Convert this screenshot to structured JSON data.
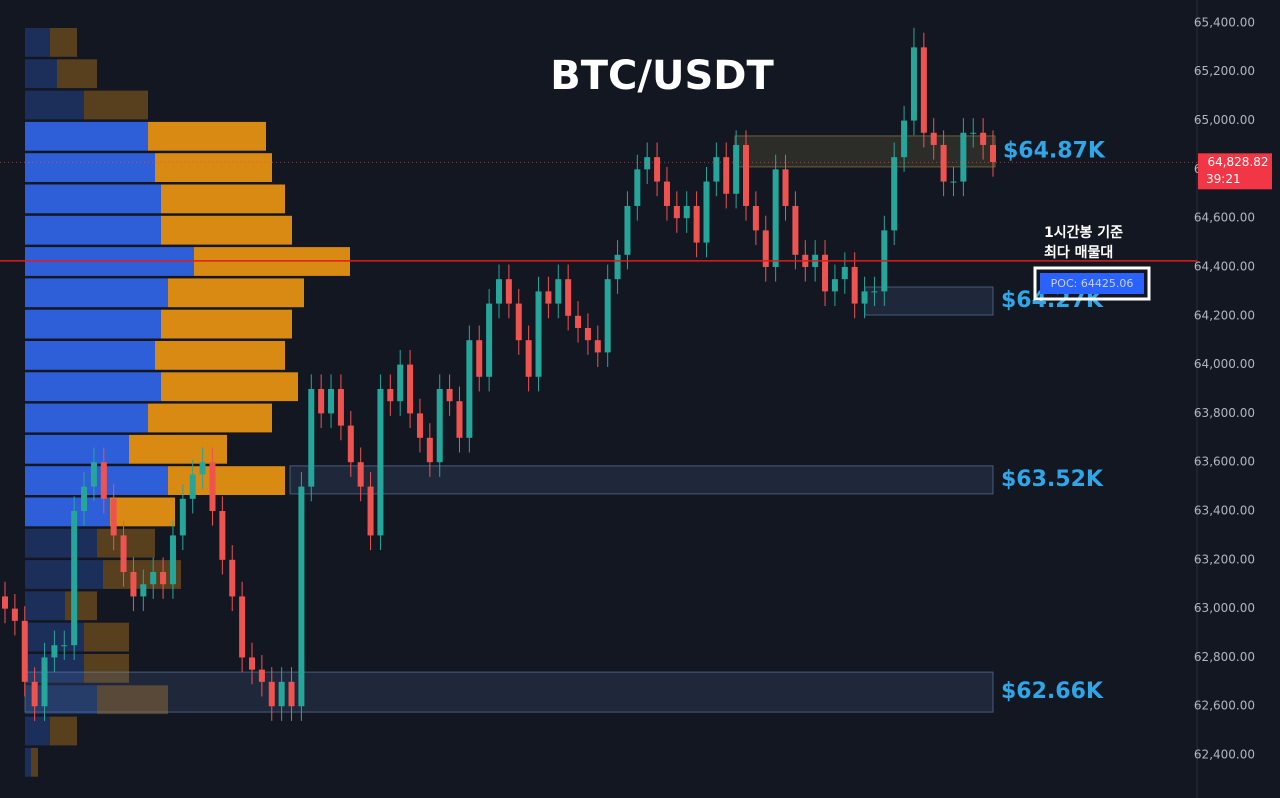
{
  "chart_data": {
    "type": "candlestick",
    "title": "BTC/USDT",
    "ylim": [
      62224,
      65494
    ],
    "yticks": [
      {
        "value": 62400,
        "label": "62,400.00"
      },
      {
        "value": 62600,
        "label": "62,600.00"
      },
      {
        "value": 62800,
        "label": "62,800.00"
      },
      {
        "value": 63000,
        "label": "63,000.00"
      },
      {
        "value": 63200,
        "label": "63,200.00"
      },
      {
        "value": 63400,
        "label": "63,400.00"
      },
      {
        "value": 63600,
        "label": "63,600.00"
      },
      {
        "value": 63800,
        "label": "63,800.00"
      },
      {
        "value": 64000,
        "label": "64,000.00"
      },
      {
        "value": 64200,
        "label": "64,200.00"
      },
      {
        "value": 64400,
        "label": "64,400.00"
      },
      {
        "value": 64600,
        "label": "64,600.00"
      },
      {
        "value": 64800,
        "label": "64,800.00"
      },
      {
        "value": 65000,
        "label": "65,000.00"
      },
      {
        "value": 65200,
        "label": "65,200.00"
      },
      {
        "value": 65400,
        "label": "65,400.00"
      }
    ],
    "up_color": "#26a69a",
    "down_color": "#ef5350",
    "open": [
      63050,
      63000,
      62950,
      62700,
      62600,
      62800,
      62850,
      62850,
      63400,
      63500,
      63600,
      63450,
      63300,
      63150,
      63050,
      63100,
      63150,
      63100,
      63300,
      63450,
      63550,
      63600,
      63400,
      63200,
      63050,
      62800,
      62750,
      62700,
      62600,
      62700,
      62600,
      63500,
      63900,
      63800,
      63900,
      63750,
      63600,
      63500,
      63300,
      63900,
      63850,
      64000,
      63800,
      63700,
      63600,
      63900,
      63850,
      63700,
      64100,
      63950,
      64250,
      64350,
      64250,
      64100,
      63950,
      64300,
      64250,
      64350,
      64200,
      64150,
      64100,
      64050,
      64350,
      64450,
      64650,
      64800,
      64850,
      64750,
      64650,
      64600,
      64650,
      64500,
      64750,
      64850,
      64700,
      64900,
      64650,
      64550,
      64400,
      64800,
      64650,
      64450,
      64400,
      64450,
      64300,
      64350,
      64400,
      64250,
      64300,
      64300,
      64550,
      64850,
      65000,
      65300,
      64950,
      64900,
      64750,
      64750,
      64950,
      64950,
      64900
    ],
    "high": [
      63110,
      63060,
      63010,
      62760,
      62860,
      62910,
      62910,
      63460,
      63560,
      63660,
      63660,
      63510,
      63360,
      63210,
      63160,
      63210,
      63210,
      63360,
      63510,
      63610,
      63660,
      63660,
      63460,
      63260,
      63110,
      62860,
      62810,
      62760,
      62760,
      62760,
      63560,
      63960,
      63960,
      63960,
      63960,
      63810,
      63660,
      63560,
      63960,
      63960,
      64060,
      64060,
      63860,
      63760,
      63960,
      63960,
      63910,
      64160,
      64160,
      64310,
      64410,
      64410,
      64310,
      64160,
      64360,
      64360,
      64410,
      64410,
      64260,
      64210,
      64160,
      64410,
      64510,
      64710,
      64860,
      64910,
      64910,
      64810,
      64710,
      64710,
      64710,
      64810,
      64910,
      64910,
      64960,
      64960,
      64710,
      64610,
      64860,
      64860,
      64710,
      64510,
      64510,
      64510,
      64410,
      64460,
      64460,
      64360,
      64360,
      64610,
      64910,
      65060,
      65380,
      65360,
      65010,
      64960,
      64810,
      65010,
      65010,
      65010,
      64960
    ],
    "low": [
      62940,
      62890,
      62640,
      62540,
      62540,
      62740,
      62790,
      62790,
      63340,
      63440,
      63390,
      63240,
      63090,
      62990,
      62990,
      63040,
      63040,
      63040,
      63240,
      63390,
      63490,
      63340,
      63140,
      62990,
      62740,
      62690,
      62640,
      62540,
      62540,
      62540,
      62540,
      63440,
      63740,
      63740,
      63690,
      63540,
      63440,
      63240,
      63240,
      63790,
      63790,
      63740,
      63640,
      63540,
      63540,
      63790,
      63640,
      63640,
      63890,
      63890,
      64190,
      64190,
      64040,
      63890,
      63890,
      64190,
      64190,
      64140,
      64090,
      64040,
      63990,
      63990,
      64290,
      64390,
      64590,
      64740,
      64690,
      64590,
      64540,
      64540,
      64440,
      64440,
      64690,
      64640,
      64640,
      64590,
      64490,
      64340,
      64340,
      64590,
      64390,
      64340,
      64340,
      64240,
      64240,
      64290,
      64190,
      64190,
      64240,
      64240,
      64490,
      64790,
      64940,
      64890,
      64840,
      64690,
      64690,
      64690,
      64890,
      64840,
      64770
    ],
    "close": [
      63000,
      62950,
      62700,
      62600,
      62800,
      62850,
      62850,
      63400,
      63500,
      63600,
      63450,
      63300,
      63150,
      63050,
      63100,
      63150,
      63100,
      63300,
      63450,
      63550,
      63600,
      63400,
      63200,
      63050,
      62800,
      62750,
      62700,
      62600,
      62700,
      62600,
      63500,
      63900,
      63800,
      63900,
      63750,
      63600,
      63500,
      63300,
      63900,
      63850,
      64000,
      63800,
      63700,
      63600,
      63900,
      63850,
      63700,
      64100,
      63950,
      64250,
      64350,
      64250,
      64100,
      63950,
      64300,
      64250,
      64350,
      64200,
      64150,
      64100,
      64050,
      64350,
      64450,
      64650,
      64800,
      64850,
      64750,
      64650,
      64600,
      64650,
      64500,
      64750,
      64850,
      64700,
      64900,
      64650,
      64550,
      64400,
      64800,
      64650,
      64450,
      64400,
      64450,
      64300,
      64350,
      64400,
      64250,
      64300,
      64300,
      64550,
      64850,
      65000,
      65300,
      64950,
      64900,
      64750,
      64750,
      64950,
      64950,
      64900,
      64830
    ],
    "profile": {
      "buy": [
        25,
        32,
        59,
        123,
        130,
        136,
        136,
        169,
        143,
        136,
        130,
        136,
        123,
        104,
        143,
        85,
        72,
        78,
        40,
        59,
        59,
        72,
        25,
        6
      ],
      "sell": [
        27,
        40,
        64,
        118,
        117,
        124,
        131,
        156,
        136,
        131,
        130,
        137,
        124,
        98,
        117,
        65,
        58,
        78,
        32,
        45,
        45,
        71,
        27,
        7
      ]
    },
    "zones": [
      {
        "label": "$64.87K",
        "top": 64937,
        "bottom": 64810
      },
      {
        "label": "$64.27K",
        "top": 64318,
        "bottom": 64203
      },
      {
        "label": "$63.52K",
        "top": 63585,
        "bottom": 63470
      },
      {
        "label": "$62.66K",
        "top": 62740,
        "bottom": 62576
      }
    ],
    "poc": 64425.06,
    "poc_label": "POC: 64425.06",
    "annotation": [
      "1시간봉 기준",
      "최다 매물대"
    ],
    "last_price": 64828.82,
    "last_price_label": "64,828.82",
    "countdown": "39:21"
  }
}
